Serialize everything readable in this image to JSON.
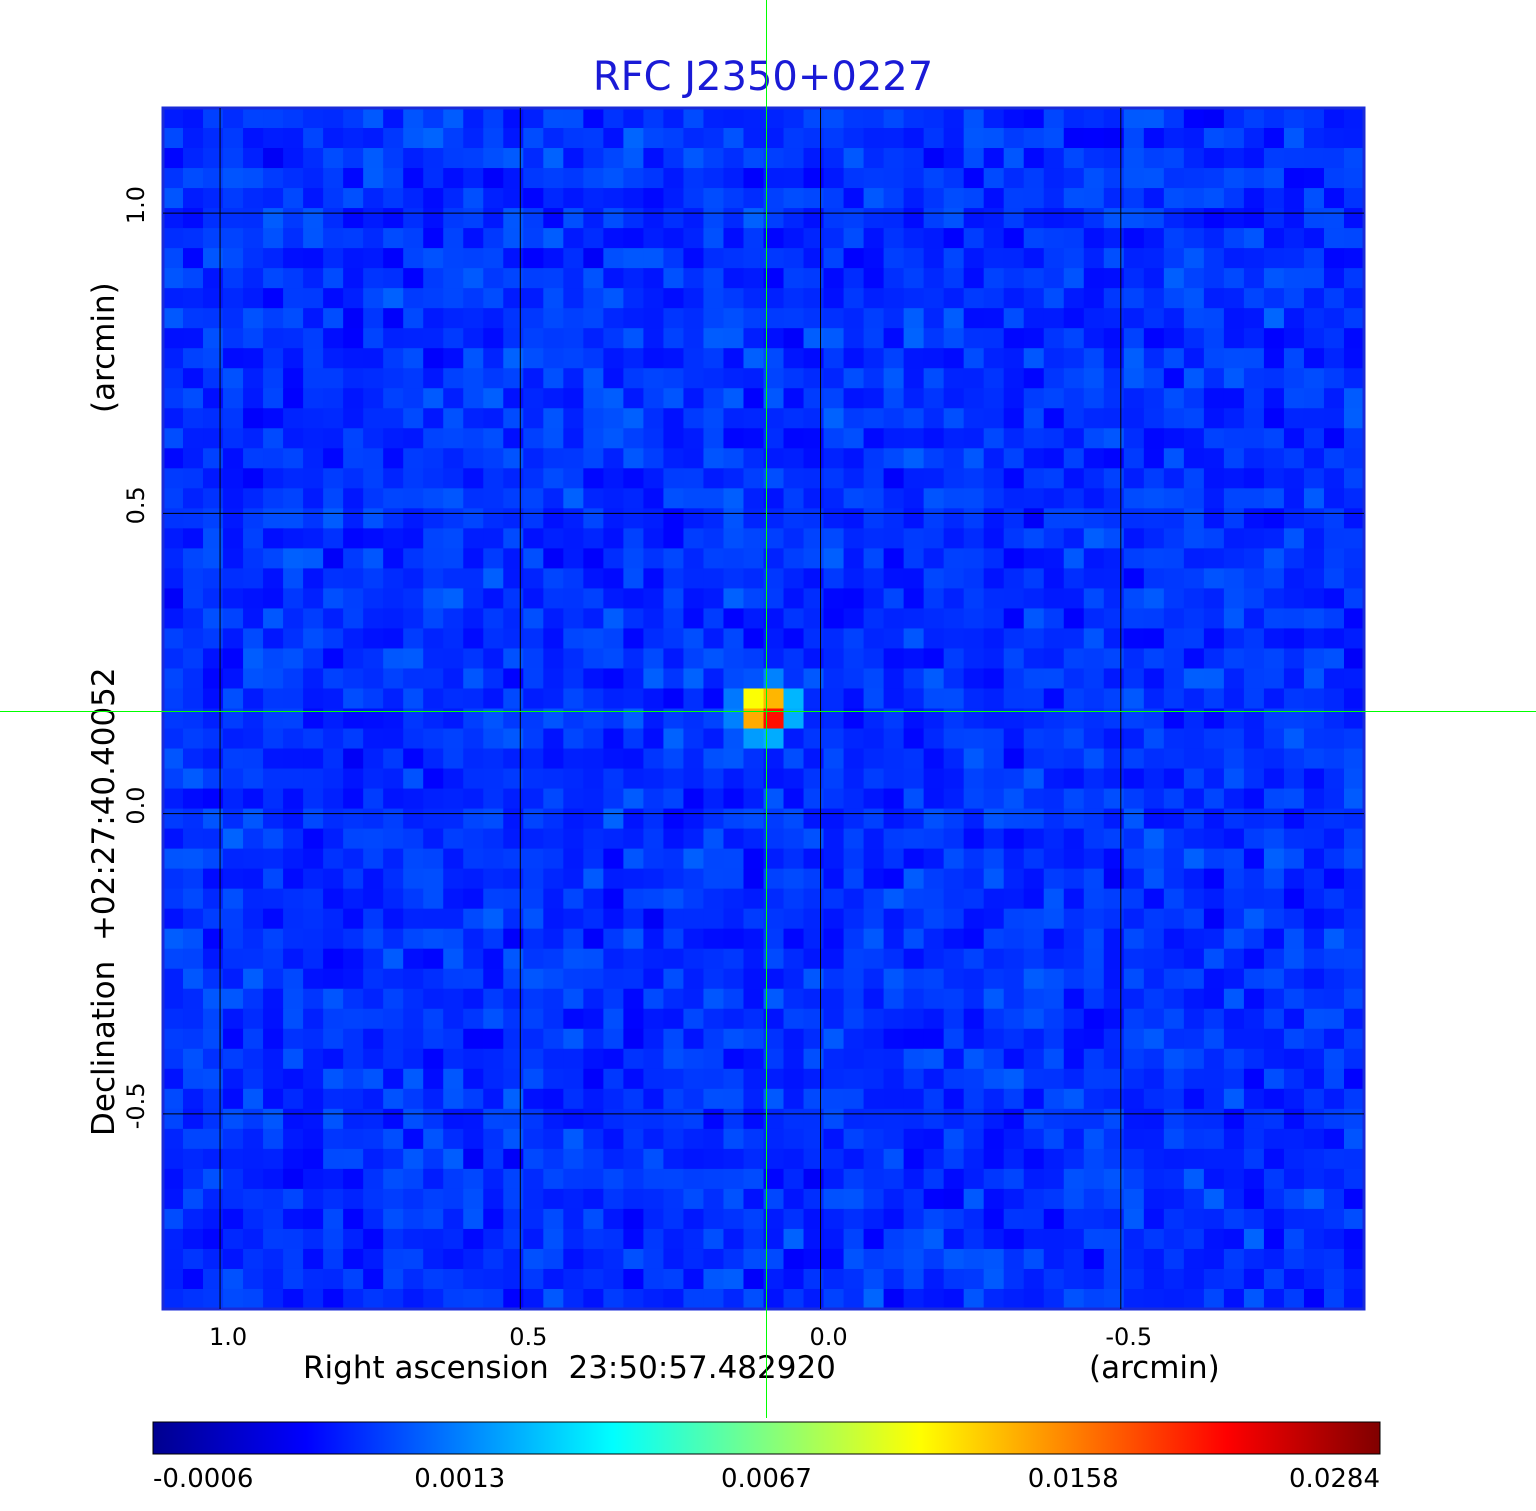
{
  "chart_data": {
    "type": "heatmap",
    "title": "RFC J2350+0227",
    "xlabel": "Right ascension  23:50:57.482920",
    "xunit": "(arcmin)",
    "ylabel": "Declination  +02:27:40.40052",
    "yunit": "(arcmin)",
    "xlim": [
      1.095,
      -0.905
    ],
    "ylim": [
      -0.825,
      1.175
    ],
    "xticks": [
      {
        "value": 1.0,
        "label": "1.0"
      },
      {
        "value": 0.5,
        "label": "0.5"
      },
      {
        "value": 0.0,
        "label": "0.0"
      },
      {
        "value": -0.5,
        "label": "-0.5"
      }
    ],
    "yticks": [
      {
        "value": 1.0,
        "label": "1.0"
      },
      {
        "value": 0.5,
        "label": "0.5"
      },
      {
        "value": 0.0,
        "label": "0.0"
      },
      {
        "value": -0.5,
        "label": "-0.5"
      }
    ],
    "grid": true,
    "colormap": "jet",
    "colorbar": {
      "orientation": "horizontal",
      "placement": "bottom",
      "tick_labels": [
        "-0.0006",
        "0.0013",
        "0.0067",
        "0.0158",
        "0.0284"
      ]
    },
    "crosshair": {
      "x": 0.09,
      "y": 0.17,
      "color": "#00ff00"
    },
    "peak": {
      "x": 0.09,
      "y": 0.17,
      "value": 0.0284
    },
    "noise_level": [
      -0.0006,
      0.0013
    ],
    "colors": {
      "title": "#1a1ad6",
      "frame": "#1a2bd8",
      "grid": "#000000",
      "crosshair": "#00ff00"
    }
  }
}
